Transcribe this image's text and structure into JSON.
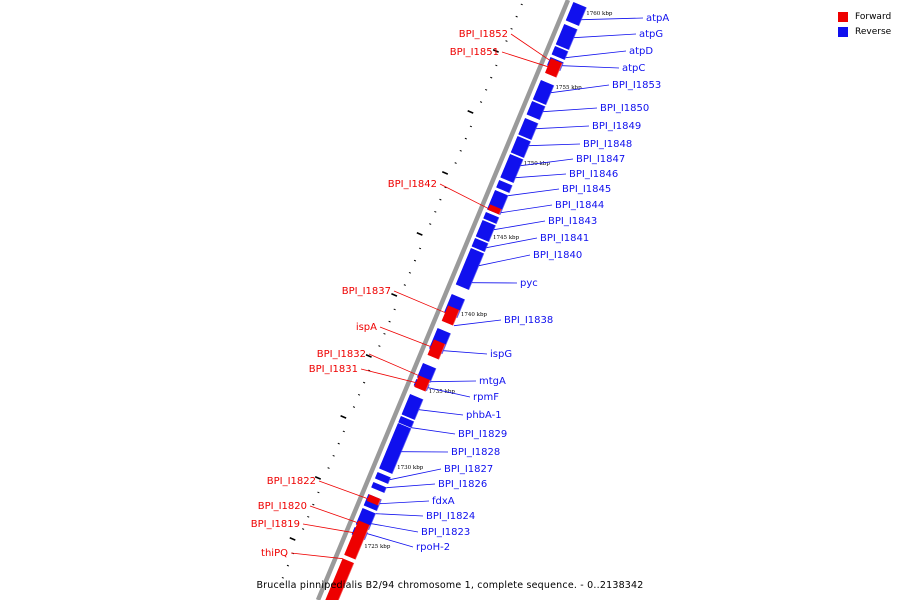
{
  "legend": {
    "items": [
      {
        "label": "Forward",
        "color": "#ee0000"
      },
      {
        "label": "Reverse",
        "color": "#1010ee"
      }
    ]
  },
  "footer": {
    "caption": "Brucella pinnipedialis B2/94 chromosome 1, complete sequence. - 0..2138342"
  },
  "colors": {
    "forward": "#ee0000",
    "reverse": "#1010ee",
    "backbone": "#9a9a9a",
    "ticks": "#000000"
  },
  "scale_labels": [
    "1760 kbp",
    "1755 kbp",
    "1750 kbp",
    "1745 kbp",
    "1740 kbp",
    "1735 kbp",
    "1730 kbp",
    "1725 kbp"
  ],
  "forward_genes": [
    "BPI_I1852",
    "BPI_I1851",
    "BPI_I1842",
    "BPI_I1837",
    "ispA",
    "BPI_I1832",
    "BPI_I1831",
    "BPI_I1822",
    "BPI_I1820",
    "BPI_I1819",
    "thiPQ"
  ],
  "reverse_genes": [
    "atpA",
    "atpG",
    "atpD",
    "atpC",
    "BPI_I1853",
    "BPI_I1850",
    "BPI_I1849",
    "BPI_I1848",
    "BPI_I1847",
    "BPI_I1846",
    "BPI_I1845",
    "BPI_I1844",
    "BPI_I1843",
    "BPI_I1841",
    "BPI_I1840",
    "pyc",
    "BPI_I1838",
    "ispG",
    "mtgA",
    "rpmF",
    "phbA-1",
    "BPI_I1829",
    "BPI_I1828",
    "BPI_I1827",
    "BPI_I1826",
    "fdxA",
    "BPI_I1824",
    "BPI_I1823",
    "rpoH-2"
  ]
}
